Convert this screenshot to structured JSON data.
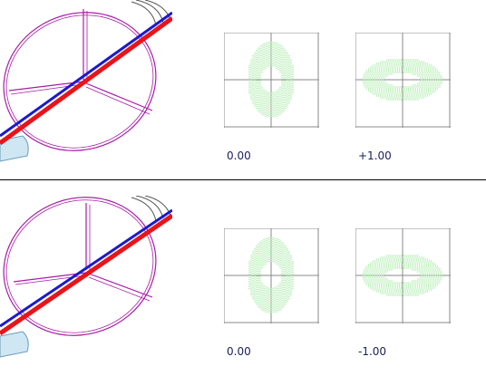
{
  "colors": {
    "axis_red": "#e8141a",
    "axis_blue": "#1a1ad0",
    "ring_magenta": "#a81ca8",
    "hatch_green": "#7ee07a",
    "crosshair_gray": "#8a8a8a",
    "label_navy": "#1a1f5c",
    "divider": "#000000",
    "blob_blue": "#cfe6f3"
  },
  "panels": [
    {
      "left_label": "0.00",
      "right_label": "+1.00",
      "left_pattern": "vertical-ellipse",
      "right_pattern": "horizontal-ellipse"
    },
    {
      "left_label": "0.00",
      "right_label": "-1.00",
      "left_pattern": "vertical-ellipse",
      "right_pattern": "horizontal-ellipse"
    }
  ]
}
